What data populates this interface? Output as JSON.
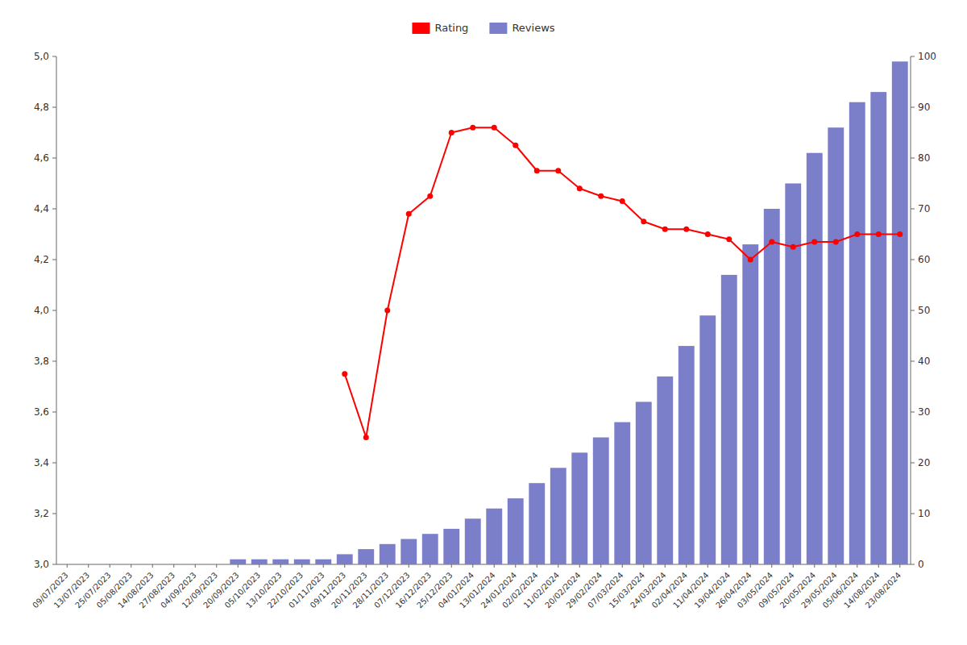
{
  "chart_data": {
    "type": "bar",
    "categories": [
      "09/07/2023",
      "13/07/2023",
      "25/07/2023",
      "05/08/2023",
      "14/08/2023",
      "27/08/2023",
      "04/09/2023",
      "12/09/2023",
      "20/09/2023",
      "05/10/2023",
      "13/10/2023",
      "22/10/2023",
      "01/11/2023",
      "09/11/2023",
      "20/11/2023",
      "28/11/2023",
      "07/12/2023",
      "16/12/2023",
      "25/12/2023",
      "04/01/2024",
      "13/01/2024",
      "24/01/2024",
      "02/02/2024",
      "11/02/2024",
      "20/02/2024",
      "29/02/2024",
      "07/03/2024",
      "15/03/2024",
      "24/03/2024",
      "02/04/2024",
      "11/04/2024",
      "19/04/2024",
      "26/04/2024",
      "03/05/2024",
      "09/05/2024",
      "20/05/2024",
      "29/05/2024",
      "05/06/2024",
      "14/08/2024",
      "23/08/2024"
    ],
    "series": [
      {
        "name": "Rating",
        "type": "line",
        "color": "#ff0000",
        "marker": "circle",
        "values": [
          null,
          null,
          null,
          null,
          null,
          null,
          null,
          null,
          null,
          null,
          null,
          null,
          null,
          3.75,
          3.5,
          4.0,
          4.38,
          4.45,
          4.7,
          4.72,
          4.72,
          4.65,
          4.55,
          4.55,
          4.48,
          4.45,
          4.43,
          4.35,
          4.32,
          4.32,
          4.3,
          4.28,
          4.2,
          4.27,
          4.25,
          4.27,
          4.27,
          4.3,
          4.3,
          4.3
        ]
      },
      {
        "name": "Reviews",
        "type": "bar",
        "color": "#7b7ec8",
        "axis": "y2",
        "values": [
          0,
          0,
          0,
          0,
          0,
          0,
          0,
          0,
          1,
          1,
          1,
          1,
          1,
          2,
          3,
          4,
          5,
          6,
          7,
          9,
          11,
          13,
          16,
          19,
          22,
          25,
          28,
          32,
          37,
          43,
          49,
          57,
          63,
          70,
          75,
          81,
          86,
          91,
          93,
          99
        ]
      }
    ],
    "ylim": [
      3.0,
      5.0
    ],
    "yticks": [
      {
        "value": 3.0,
        "label": "3,0"
      },
      {
        "value": 3.2,
        "label": "3,2"
      },
      {
        "value": 3.4,
        "label": "3,4"
      },
      {
        "value": 3.6,
        "label": "3,6"
      },
      {
        "value": 3.8,
        "label": "3,8"
      },
      {
        "value": 4.0,
        "label": "4,0"
      },
      {
        "value": 4.2,
        "label": "4,2"
      },
      {
        "value": 4.4,
        "label": "4,4"
      },
      {
        "value": 4.6,
        "label": "4,6"
      },
      {
        "value": 4.8,
        "label": "4,8"
      },
      {
        "value": 5.0,
        "label": "5,0"
      }
    ],
    "y2lim": [
      0,
      100
    ],
    "y2ticks": [
      0,
      10,
      20,
      30,
      40,
      50,
      60,
      70,
      80,
      90,
      100
    ],
    "grid": false,
    "legend": "top"
  }
}
